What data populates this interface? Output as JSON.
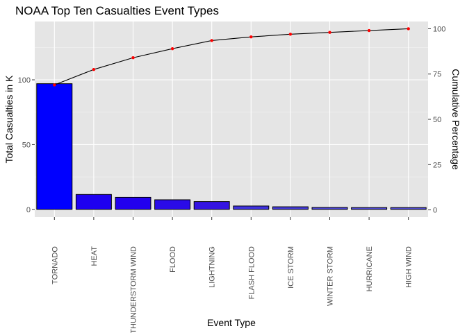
{
  "chart_data": {
    "type": "bar",
    "title": "NOAA Top Ten Casualties Event Types",
    "xlabel": "Event Type",
    "ylabel": "Total Casualties in K",
    "y2label": "Cumulative Percentage",
    "categories": [
      "TORNADO",
      "HEAT",
      "THUNDERSTORM WIND",
      "FLOOD",
      "LIGHTNING",
      "FLASH FLOOD",
      "ICE STORM",
      "WINTER STORM",
      "HURRICANE",
      "HIGH WIND"
    ],
    "values": [
      97.0,
      11.5,
      9.3,
      7.4,
      6.0,
      2.6,
      2.0,
      1.5,
      1.4,
      1.4
    ],
    "cumulative_percent": [
      69,
      77.5,
      84,
      89,
      93.5,
      95.5,
      97,
      98,
      99,
      100
    ],
    "ylim": [
      -6,
      145
    ],
    "y2lim": [
      -4,
      104
    ],
    "yticks": [
      0,
      50,
      100
    ],
    "y2ticks": [
      0,
      25,
      50,
      75,
      100
    ],
    "bar_colors": [
      "#0000ff",
      "#1e00f0",
      "#2200ee",
      "#2a0be8",
      "#3414e2",
      "#3f32dd",
      "#443bd8",
      "#4a44d4",
      "#4d47d2",
      "#4f4ad0"
    ],
    "line_color": "#000000",
    "point_color": "#ff0000",
    "panel_bg": "#e5e5e5",
    "grid": true
  }
}
